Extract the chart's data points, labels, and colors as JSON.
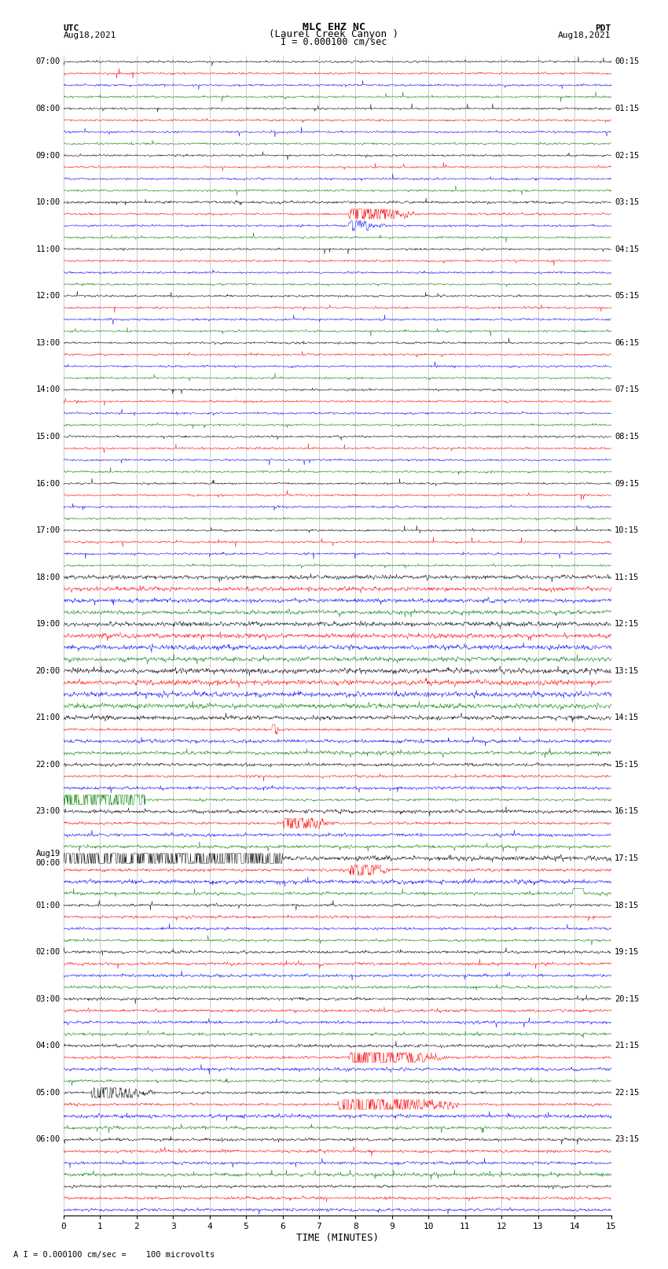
{
  "title_line1": "MLC EHZ NC",
  "title_line2": "(Laurel Creek Canyon )",
  "title_line3": "I = 0.000100 cm/sec",
  "utc_label": "UTC",
  "utc_date": "Aug18,2021",
  "pdt_label": "PDT",
  "pdt_date": "Aug18,2021",
  "xlabel": "TIME (MINUTES)",
  "footer": "A I = 0.000100 cm/sec =    100 microvolts",
  "xmin": 0,
  "xmax": 15,
  "bg_color": "#ffffff",
  "trace_colors": [
    "black",
    "red",
    "blue",
    "green"
  ],
  "grid_color": "#999999",
  "utc_times": [
    "07:00",
    "",
    "",
    "",
    "08:00",
    "",
    "",
    "",
    "09:00",
    "",
    "",
    "",
    "10:00",
    "",
    "",
    "",
    "11:00",
    "",
    "",
    "",
    "12:00",
    "",
    "",
    "",
    "13:00",
    "",
    "",
    "",
    "14:00",
    "",
    "",
    "",
    "15:00",
    "",
    "",
    "",
    "16:00",
    "",
    "",
    "",
    "17:00",
    "",
    "",
    "",
    "18:00",
    "",
    "",
    "",
    "19:00",
    "",
    "",
    "",
    "20:00",
    "",
    "",
    "",
    "21:00",
    "",
    "",
    "",
    "22:00",
    "",
    "",
    "",
    "23:00",
    "",
    "",
    "",
    "Aug19\n00:00",
    "",
    "",
    "",
    "01:00",
    "",
    "",
    "",
    "02:00",
    "",
    "",
    "",
    "03:00",
    "",
    "",
    "",
    "04:00",
    "",
    "",
    "",
    "05:00",
    "",
    "",
    "",
    "06:00",
    "",
    ""
  ],
  "pdt_times": [
    "00:15",
    "",
    "",
    "",
    "01:15",
    "",
    "",
    "",
    "02:15",
    "",
    "",
    "",
    "03:15",
    "",
    "",
    "",
    "04:15",
    "",
    "",
    "",
    "05:15",
    "",
    "",
    "",
    "06:15",
    "",
    "",
    "",
    "07:15",
    "",
    "",
    "",
    "08:15",
    "",
    "",
    "",
    "09:15",
    "",
    "",
    "",
    "10:15",
    "",
    "",
    "",
    "11:15",
    "",
    "",
    "",
    "12:15",
    "",
    "",
    "",
    "13:15",
    "",
    "",
    "",
    "14:15",
    "",
    "",
    "",
    "15:15",
    "",
    "",
    "",
    "16:15",
    "",
    "",
    "",
    "17:15",
    "",
    "",
    "",
    "18:15",
    "",
    "",
    "",
    "19:15",
    "",
    "",
    "",
    "20:15",
    "",
    "",
    "",
    "21:15",
    "",
    "",
    "",
    "22:15",
    "",
    "",
    "",
    "23:15",
    "",
    ""
  ],
  "num_traces": 99,
  "random_seed": 42
}
